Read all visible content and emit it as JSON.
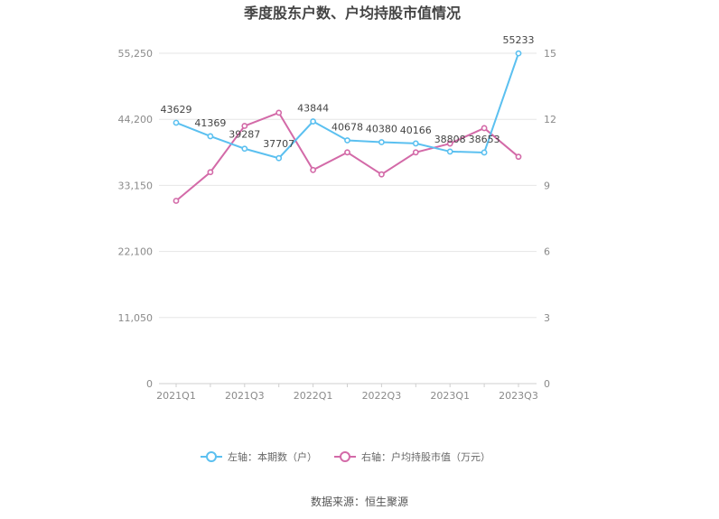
{
  "chart_data": {
    "type": "line",
    "title": "季度股东户数、户均持股市值情况",
    "categories": [
      "2021Q1",
      "2021Q2",
      "2021Q3",
      "2021Q4",
      "2022Q1",
      "2022Q2",
      "2022Q3",
      "2022Q4",
      "2023Q1",
      "2023Q2",
      "2023Q3"
    ],
    "x_tick_labels": [
      "2021Q1",
      "2021Q3",
      "2022Q1",
      "2022Q3",
      "2023Q1",
      "2023Q3"
    ],
    "series": [
      {
        "name": "左轴：本期数（户）",
        "axis": "left",
        "color": "#5bc0f0",
        "values": [
          43629,
          41369,
          39287,
          37707,
          43844,
          40678,
          40380,
          40166,
          38808,
          38653,
          55233
        ],
        "labels": [
          "43629",
          "41369",
          "39287",
          "37707",
          "43844",
          "40678",
          "40380",
          "40166",
          "38808",
          "38653",
          "55233"
        ]
      },
      {
        "name": "右轴：户均持股市值（万元）",
        "axis": "right",
        "color": "#d36aa8",
        "values": [
          8.3,
          9.6,
          11.7,
          12.3,
          9.7,
          10.5,
          9.5,
          10.5,
          10.9,
          11.6,
          10.3
        ]
      }
    ],
    "y_left": {
      "ylim": [
        0,
        55250
      ],
      "ticks": [
        "0",
        "11,050",
        "22,100",
        "33,150",
        "44,200",
        "55,250"
      ]
    },
    "y_right": {
      "ylim": [
        0,
        15
      ],
      "ticks": [
        "0",
        "3",
        "6",
        "9",
        "12",
        "15"
      ]
    },
    "grid": true,
    "legend_position": "bottom"
  },
  "footer": {
    "source": "数据来源：恒生聚源"
  }
}
